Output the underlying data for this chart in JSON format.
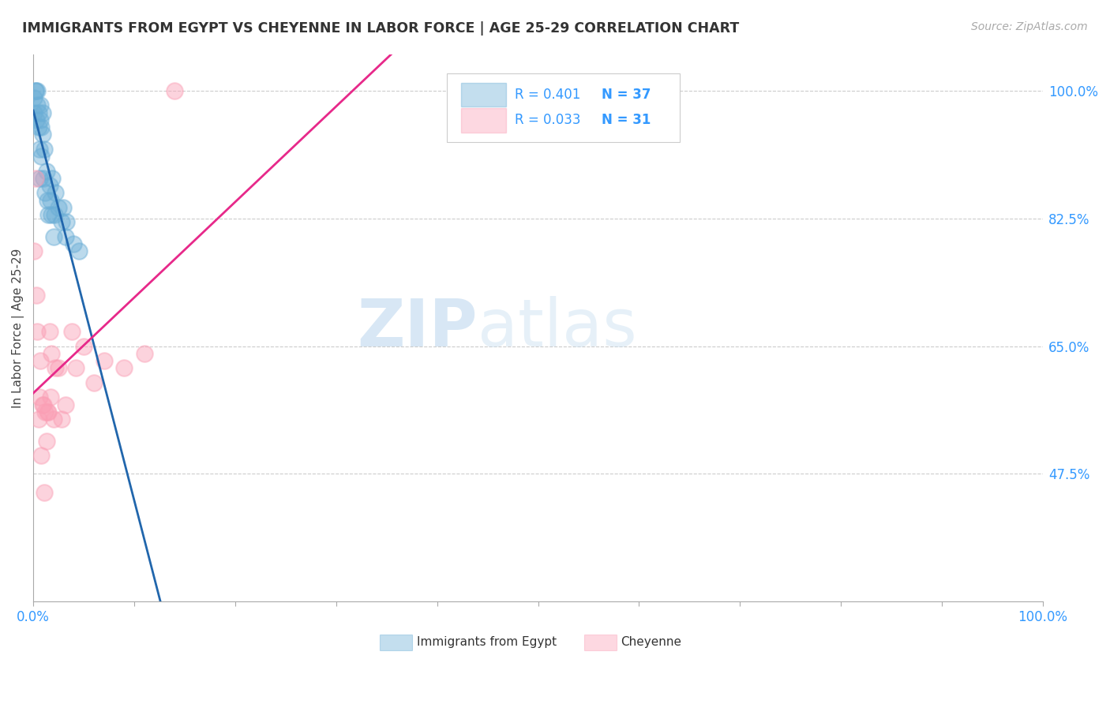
{
  "title": "IMMIGRANTS FROM EGYPT VS CHEYENNE IN LABOR FORCE | AGE 25-29 CORRELATION CHART",
  "source": "Source: ZipAtlas.com",
  "ylabel": "In Labor Force | Age 25-29",
  "xlim": [
    0.0,
    1.0
  ],
  "ylim": [
    0.3,
    1.05
  ],
  "yticks": [
    0.475,
    0.65,
    0.825,
    1.0
  ],
  "ytick_labels": [
    "47.5%",
    "65.0%",
    "82.5%",
    "100.0%"
  ],
  "xticks": [
    0.0,
    0.1,
    0.2,
    0.3,
    0.4,
    0.5,
    0.6,
    0.7,
    0.8,
    0.9,
    1.0
  ],
  "xtick_labels": [
    "0.0%",
    "",
    "",
    "",
    "",
    "",
    "",
    "",
    "",
    "",
    "100.0%"
  ],
  "legend_r1": "0.401",
  "legend_n1": "37",
  "legend_r2": "0.033",
  "legend_n2": "31",
  "egypt_color": "#6baed6",
  "cheyenne_color": "#fa9fb5",
  "egypt_line_color": "#2166ac",
  "cheyenne_line_color": "#e7298a",
  "watermark_zip": "ZIP",
  "watermark_atlas": "atlas",
  "background_color": "#ffffff",
  "grid_color": "#cccccc",
  "egypt_x": [
    0.001,
    0.001,
    0.002,
    0.002,
    0.003,
    0.004,
    0.004,
    0.005,
    0.005,
    0.006,
    0.006,
    0.007,
    0.007,
    0.008,
    0.008,
    0.009,
    0.009,
    0.01,
    0.011,
    0.012,
    0.013,
    0.014,
    0.015,
    0.016,
    0.017,
    0.018,
    0.019,
    0.02,
    0.021,
    0.022,
    0.025,
    0.028,
    0.03,
    0.032,
    0.033,
    0.04,
    0.045
  ],
  "egypt_y": [
    0.97,
    0.99,
    1.0,
    1.0,
    0.96,
    0.98,
    1.0,
    0.95,
    0.97,
    0.88,
    0.92,
    0.96,
    0.98,
    0.91,
    0.95,
    0.94,
    0.97,
    0.88,
    0.92,
    0.86,
    0.89,
    0.85,
    0.83,
    0.87,
    0.85,
    0.83,
    0.88,
    0.8,
    0.83,
    0.86,
    0.84,
    0.82,
    0.84,
    0.8,
    0.82,
    0.79,
    0.78
  ],
  "cheyenne_x": [
    0.001,
    0.002,
    0.003,
    0.004,
    0.005,
    0.006,
    0.007,
    0.008,
    0.009,
    0.01,
    0.011,
    0.012,
    0.013,
    0.014,
    0.015,
    0.016,
    0.017,
    0.018,
    0.02,
    0.022,
    0.025,
    0.028,
    0.032,
    0.038,
    0.042,
    0.05,
    0.06,
    0.07,
    0.09,
    0.11,
    0.14
  ],
  "cheyenne_y": [
    0.78,
    0.88,
    0.72,
    0.67,
    0.55,
    0.58,
    0.63,
    0.5,
    0.57,
    0.57,
    0.45,
    0.56,
    0.52,
    0.56,
    0.56,
    0.67,
    0.58,
    0.64,
    0.55,
    0.62,
    0.62,
    0.55,
    0.57,
    0.67,
    0.62,
    0.65,
    0.6,
    0.63,
    0.62,
    0.64,
    1.0
  ]
}
